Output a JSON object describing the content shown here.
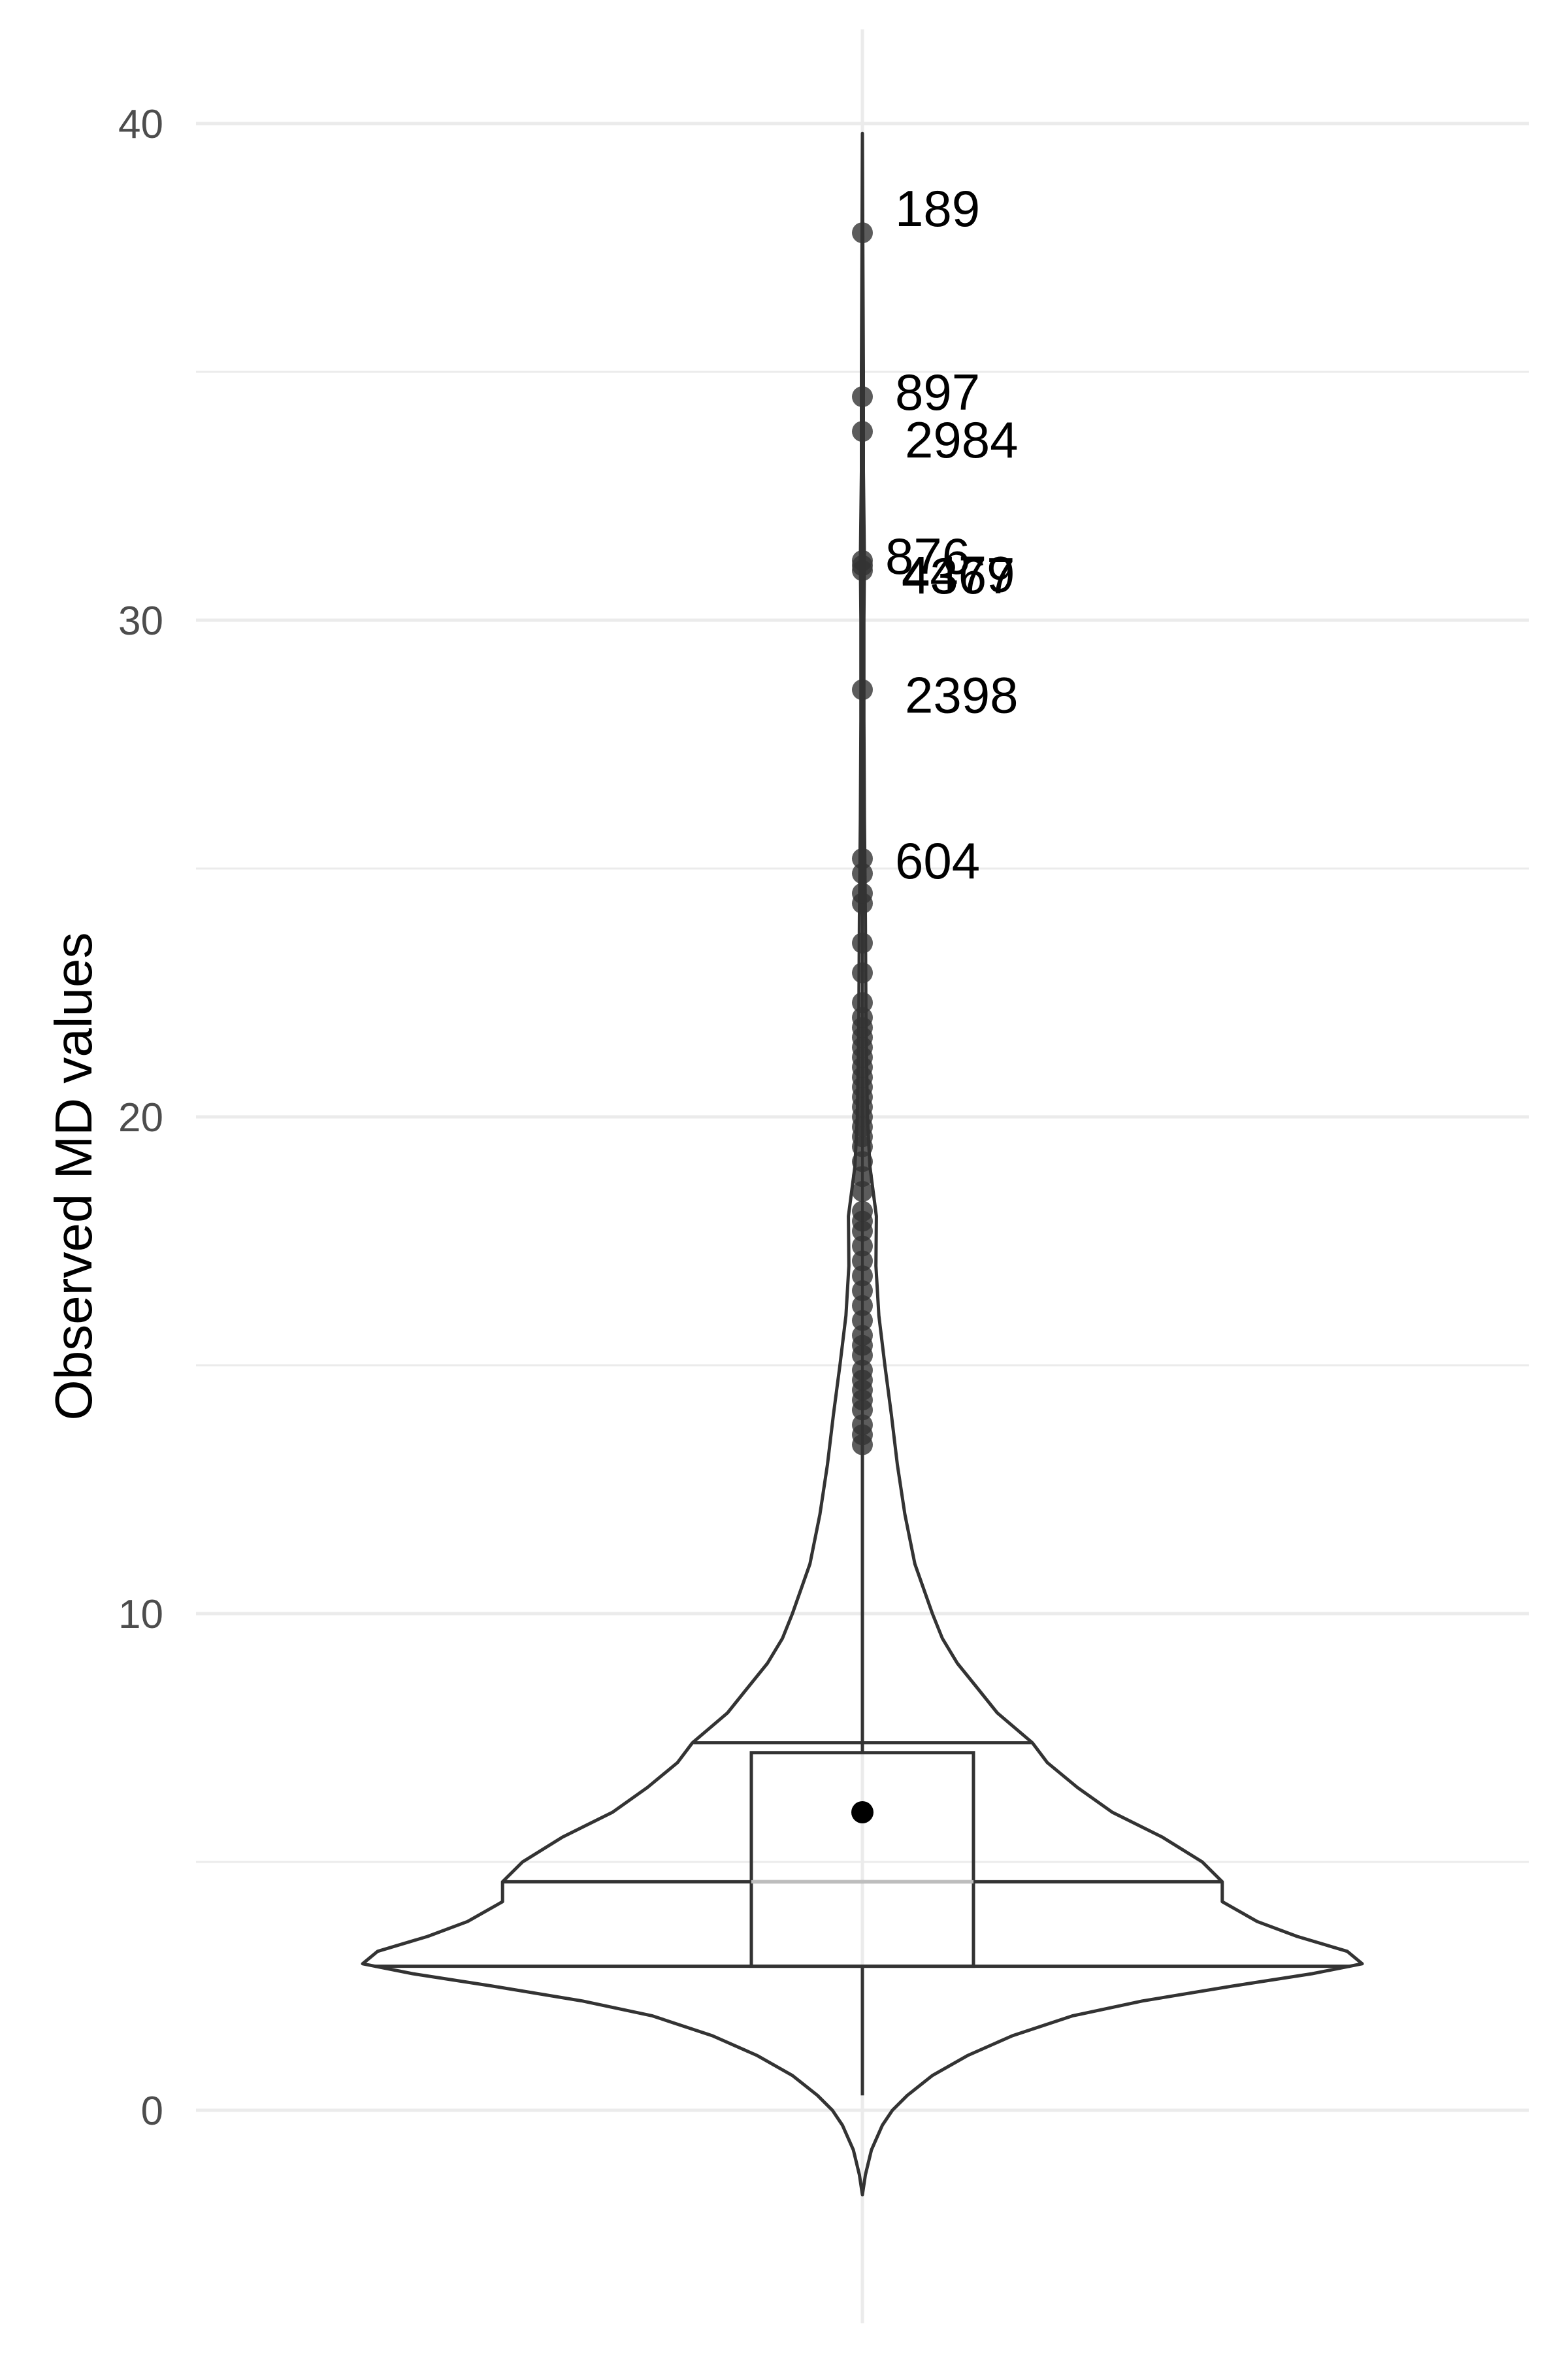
{
  "chart_data": {
    "type": "violin",
    "title": "",
    "xlabel": "",
    "ylabel": "Observed MD values",
    "ylim": [
      -3.7,
      42.5
    ],
    "y_ticks": [
      0,
      10,
      20,
      30,
      40
    ],
    "y_tick_labels": [
      "0",
      "10",
      "20",
      "30",
      "40"
    ],
    "grid": true,
    "legend": "none",
    "colors": {
      "outline": "#333333",
      "points": "#333333",
      "grid": "#ebebeb",
      "mean": "#000000"
    },
    "violin": {
      "min": -1.7,
      "max": 39.8,
      "quantile_lines": [
        2.9,
        4.6,
        7.4
      ],
      "profile_halfwidth_relative": [
        [
          -1.7,
          0.0
        ],
        [
          -1.3,
          0.006
        ],
        [
          -0.8,
          0.018
        ],
        [
          -0.3,
          0.04
        ],
        [
          0.0,
          0.06
        ],
        [
          0.3,
          0.09
        ],
        [
          0.7,
          0.14
        ],
        [
          1.1,
          0.21
        ],
        [
          1.5,
          0.3
        ],
        [
          1.9,
          0.42
        ],
        [
          2.2,
          0.56
        ],
        [
          2.5,
          0.74
        ],
        [
          2.75,
          0.9
        ],
        [
          2.95,
          1.0
        ],
        [
          3.2,
          0.97
        ],
        [
          3.5,
          0.87
        ],
        [
          3.8,
          0.79
        ],
        [
          4.2,
          0.72
        ],
        [
          4.6,
          0.72
        ],
        [
          5.0,
          0.68
        ],
        [
          5.5,
          0.6
        ],
        [
          6.0,
          0.5
        ],
        [
          6.5,
          0.43
        ],
        [
          7.0,
          0.37
        ],
        [
          7.4,
          0.34
        ],
        [
          8.0,
          0.27
        ],
        [
          8.5,
          0.23
        ],
        [
          9.0,
          0.19
        ],
        [
          9.5,
          0.16
        ],
        [
          10.0,
          0.14
        ],
        [
          11.0,
          0.105
        ],
        [
          12.0,
          0.085
        ],
        [
          13.0,
          0.07
        ],
        [
          14.0,
          0.058
        ],
        [
          15.0,
          0.045
        ],
        [
          16.0,
          0.033
        ],
        [
          17.0,
          0.027
        ],
        [
          18.0,
          0.028
        ],
        [
          19.0,
          0.015
        ],
        [
          20.0,
          0.01
        ],
        [
          22.0,
          0.007
        ],
        [
          24.0,
          0.006
        ],
        [
          26.0,
          0.004
        ],
        [
          28.0,
          0.003
        ],
        [
          30.0,
          0.003
        ],
        [
          31.2,
          0.004
        ],
        [
          33.0,
          0.002
        ],
        [
          35.0,
          0.002
        ],
        [
          37.0,
          0.001
        ],
        [
          39.8,
          0.0
        ]
      ]
    },
    "boxplot": {
      "q1": 2.9,
      "median": 4.6,
      "q3": 7.2,
      "whisker_low": 0.3,
      "whisker_high": 13.4,
      "mean": 6.0
    },
    "outliers": [
      13.4,
      13.6,
      13.8,
      14.1,
      14.3,
      14.5,
      14.7,
      14.9,
      15.2,
      15.4,
      15.6,
      15.9,
      16.2,
      16.5,
      16.8,
      17.1,
      17.4,
      17.7,
      17.9,
      18.1,
      18.5,
      18.8,
      19.1,
      19.4,
      19.6,
      19.8,
      20.0,
      20.2,
      20.4,
      20.6,
      20.8,
      21.0,
      21.2,
      21.4,
      21.6,
      21.8,
      22.0,
      22.3,
      22.9,
      23.5,
      24.3,
      24.5,
      24.9,
      25.2,
      28.6,
      31.0,
      31.1,
      31.2,
      33.8,
      34.5,
      37.8
    ],
    "labeled_points": [
      {
        "id": "189",
        "y": 37.8
      },
      {
        "id": "897",
        "y": 34.5
      },
      {
        "id": "2984",
        "y": 33.8
      },
      {
        "id": "876",
        "y": 31.2
      },
      {
        "id": "4479",
        "y": 31.1
      },
      {
        "id": "4367",
        "y": 31.0
      },
      {
        "id": "2398",
        "y": 28.6
      },
      {
        "id": "604",
        "y": 25.2
      }
    ]
  }
}
